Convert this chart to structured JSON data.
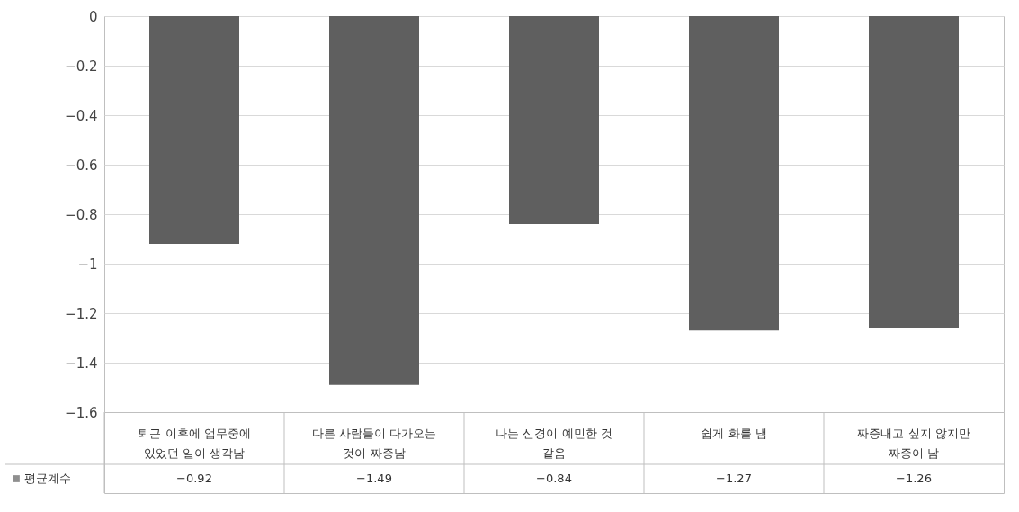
{
  "chart_data": {
    "type": "bar",
    "categories": [
      "퇴근 이후에 업무중에 있었던 일이 생각남",
      "다른 사람들이 다가오는 것이 짜증남",
      "나는 신경이 예민한 것 같음",
      "쉽게 화를 냄",
      "짜증내고 싶지 않지만 짜증이 남"
    ],
    "series": [
      {
        "name": "평균계수",
        "color": "#5f5f5f",
        "values": [
          -0.92,
          -1.49,
          -0.84,
          -1.27,
          -1.26
        ]
      }
    ],
    "ylim": [
      -1.6,
      0
    ],
    "yticks": [
      0,
      -0.2,
      -0.4,
      -0.6,
      -0.8,
      -1,
      -1.2,
      -1.4,
      -1.6
    ],
    "grid": "y",
    "data_labels": true,
    "legend": "bottom left"
  }
}
